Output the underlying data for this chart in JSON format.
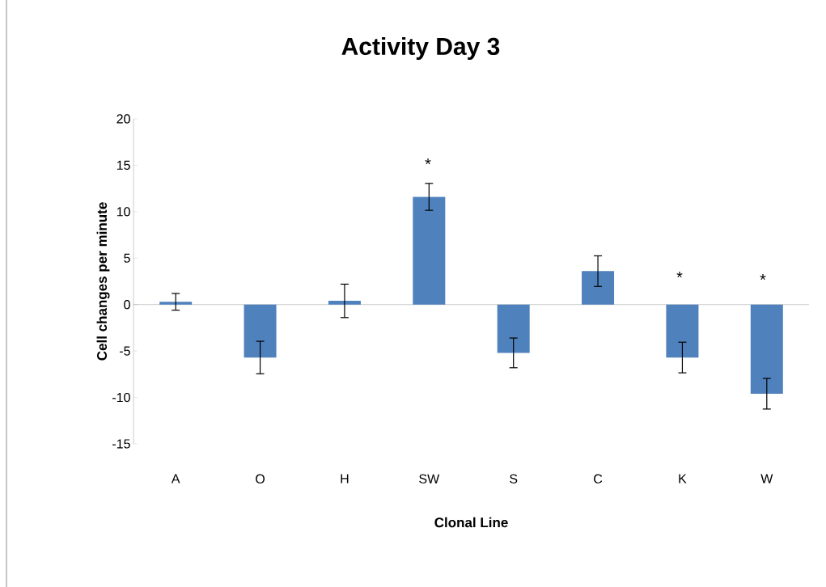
{
  "chart_data": {
    "type": "bar",
    "title": "Activity Day 3",
    "xlabel": "Clonal Line",
    "ylabel": "Cell changes per minute",
    "categories": [
      "A",
      "O",
      "H",
      "SW",
      "S",
      "C",
      "K",
      "W"
    ],
    "values": [
      0.3,
      -5.7,
      0.4,
      11.6,
      -5.2,
      3.6,
      -5.7,
      -9.6
    ],
    "errors": [
      0.9,
      1.75,
      1.8,
      1.45,
      1.6,
      1.65,
      1.65,
      1.65
    ],
    "color": "#4f81bd",
    "ylim": [
      -15,
      20
    ],
    "yticks": [
      -15,
      -10,
      -5,
      0,
      5,
      10,
      15,
      20
    ],
    "annotations": [
      "*",
      "*",
      "*"
    ]
  }
}
